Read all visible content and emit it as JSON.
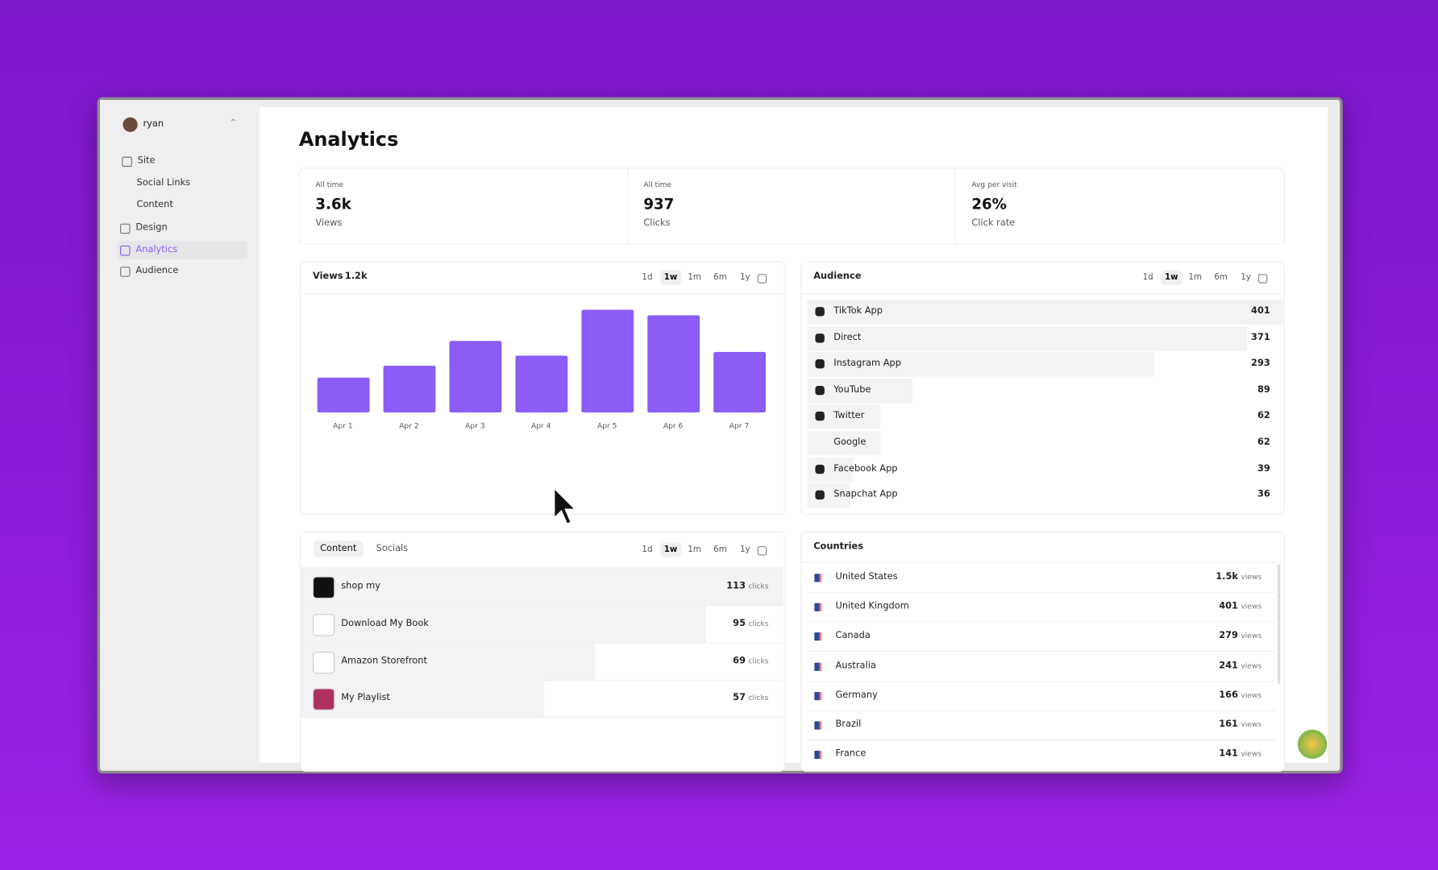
{
  "sidebar": {
    "user": "ryan",
    "nav": [
      "Site",
      "Social Links",
      "Content",
      "Design",
      "Analytics",
      "Audience"
    ]
  },
  "header": {
    "title": "Analytics"
  },
  "stats": [
    {
      "caption": "All time",
      "value": "3.6k",
      "label": "Views"
    },
    {
      "caption": "All time",
      "value": "937",
      "label": "Clicks"
    },
    {
      "caption": "Avg per visit",
      "value": "26%",
      "label": "Click rate"
    }
  ],
  "ranges": [
    "1d",
    "1w",
    "1m",
    "6m",
    "1y"
  ],
  "views_card": {
    "title": "Views",
    "total": "1.2k"
  },
  "chart_data": {
    "type": "bar",
    "categories": [
      "Apr 1",
      "Apr 2",
      "Apr 3",
      "Apr 4",
      "Apr 5",
      "Apr 6",
      "Apr 7"
    ],
    "values": [
      89,
      119,
      182,
      145,
      262,
      248,
      154
    ],
    "color": "#8b5cf6"
  },
  "audience": {
    "title": "Audience",
    "rows": [
      {
        "name": "TikTok App",
        "value": 401
      },
      {
        "name": "Direct",
        "value": 371
      },
      {
        "name": "Instagram App",
        "value": 293
      },
      {
        "name": "YouTube",
        "value": 89
      },
      {
        "name": "Twitter",
        "value": 62
      },
      {
        "name": "Google",
        "value": 62
      },
      {
        "name": "Facebook App",
        "value": 39
      },
      {
        "name": "Snapchat App",
        "value": 36
      }
    ]
  },
  "content": {
    "tabs": [
      "Content",
      "Socials"
    ],
    "unit": "clicks",
    "rows": [
      {
        "name": "shop my",
        "value": 113
      },
      {
        "name": "Download My Book",
        "value": 95
      },
      {
        "name": "Amazon Storefront",
        "value": 69
      },
      {
        "name": "My Playlist",
        "value": 57
      }
    ]
  },
  "countries": {
    "title": "Countries",
    "unit": "views",
    "rows": [
      {
        "name": "United States",
        "value": "1.5k"
      },
      {
        "name": "United Kingdom",
        "value": "401"
      },
      {
        "name": "Canada",
        "value": "279"
      },
      {
        "name": "Australia",
        "value": "241"
      },
      {
        "name": "Germany",
        "value": "166"
      },
      {
        "name": "Brazil",
        "value": "161"
      },
      {
        "name": "France",
        "value": "141"
      }
    ]
  }
}
